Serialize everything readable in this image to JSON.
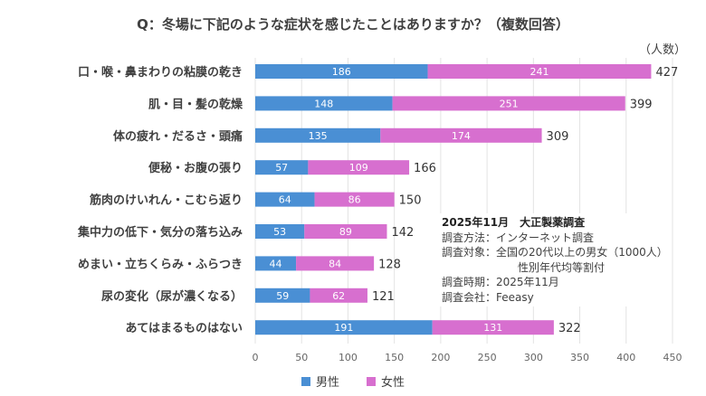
{
  "chart_data": {
    "type": "bar",
    "stacked": true,
    "orientation": "horizontal",
    "title": "Q：冬場に下記のような症状を感じたことはありますか？（複数回答）",
    "unit_label": "（人数）",
    "categories": [
      "口・喉・鼻まわりの粘膜の乾き",
      "肌・目・髪の乾燥",
      "体の疲れ・だるさ・頭痛",
      "便秘・お腹の張り",
      "筋肉のけいれん・こむら返り",
      "集中力の低下・気分の落ち込み",
      "めまい・立ちくらみ・ふらつき",
      "尿の変化（尿が濃くなる）",
      "あてはまるものはない"
    ],
    "series": [
      {
        "name": "男性",
        "color": "#4a8fd4",
        "values": [
          186,
          148,
          135,
          57,
          64,
          53,
          44,
          59,
          191
        ]
      },
      {
        "name": "女性",
        "color": "#d76fcf",
        "values": [
          241,
          251,
          174,
          109,
          86,
          89,
          84,
          62,
          131
        ]
      }
    ],
    "totals": [
      427,
      399,
      309,
      166,
      150,
      142,
      128,
      121,
      322
    ],
    "xlim": [
      0,
      450
    ],
    "xticks": [
      0,
      50,
      100,
      150,
      200,
      250,
      300,
      350,
      400,
      450
    ],
    "grid": true,
    "legend": "bottom"
  },
  "note": {
    "heading": "2025年11月　大正製薬調査",
    "lines": [
      "調査方法：インターネット調査",
      "調査対象：全国の20代以上の男女（1000人）"
    ],
    "indent_line": "性別年代均等割付",
    "lines2": [
      "調査時期：2025年11月",
      "調査会社：Feeasy"
    ]
  }
}
